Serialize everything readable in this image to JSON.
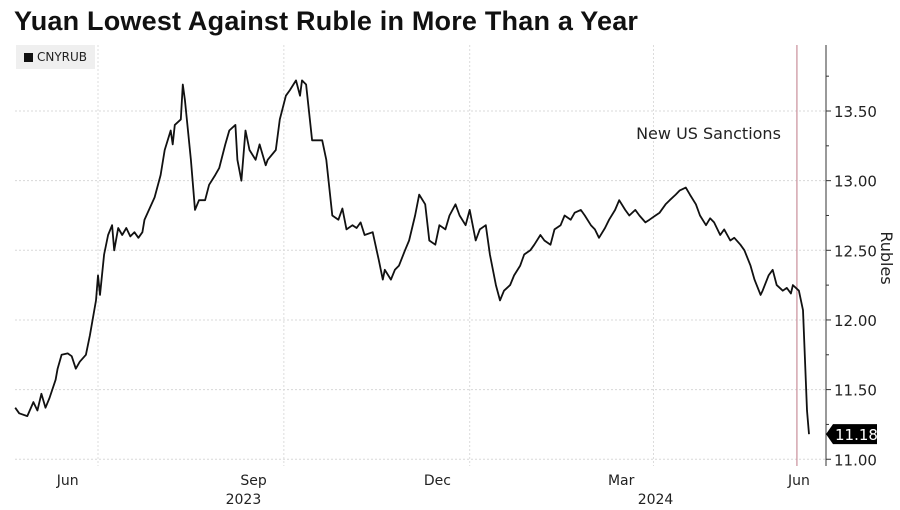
{
  "chart_data": {
    "type": "line",
    "title": "Yuan Lowest Against Ruble in More Than a Year",
    "ylabel": "Rubles",
    "xlabel": "",
    "x_unit": "days since 2023-07-01",
    "ylim": [
      11.0,
      13.9
    ],
    "xlim": [
      -41,
      366
    ],
    "grid": true,
    "legend": {
      "position": "top-left",
      "entries": [
        "CNYRUB"
      ]
    },
    "y_ticks": [
      "11.00",
      "11.50",
      "12.00",
      "12.50",
      "13.00",
      "13.50"
    ],
    "y_tick_values": [
      11.0,
      11.5,
      12.0,
      12.5,
      13.0,
      13.5
    ],
    "x_gridlines": [
      0,
      92,
      184,
      275
    ],
    "x_tick_labels": [
      {
        "label": "Jun",
        "day": -15
      },
      {
        "label": "Sep",
        "day": 77
      },
      {
        "label": "Dec",
        "day": 168
      },
      {
        "label": "Mar",
        "day": 259
      },
      {
        "label": "Jun",
        "day": 347
      }
    ],
    "year_labels": [
      {
        "label": "2023",
        "day": 72
      },
      {
        "label": "2024",
        "day": 276
      }
    ],
    "annotation": {
      "text": "New US Sanctions",
      "day": 346,
      "color": "#c98f9b"
    },
    "last_value": {
      "label": "11.18",
      "value": 11.18
    },
    "series": [
      {
        "name": "CNYRUB",
        "color": "#111111",
        "x": [
          -41,
          -39,
          -35,
          -32,
          -30,
          -28,
          -26,
          -24,
          -21,
          -20,
          -18,
          -15,
          -13,
          -11,
          -9,
          -6,
          -4,
          -1,
          0,
          1,
          3,
          5,
          7,
          8,
          10,
          12,
          14,
          16,
          18,
          20,
          22,
          23,
          28,
          31,
          33,
          36,
          37,
          38,
          41,
          42,
          43,
          46,
          48,
          50,
          53,
          55,
          58,
          60,
          63,
          65,
          68,
          69,
          71,
          73,
          75,
          78,
          80,
          83,
          84,
          88,
          90,
          93,
          95,
          98,
          100,
          101,
          103,
          106,
          109,
          111,
          113,
          116,
          119,
          121,
          123,
          126,
          128,
          130,
          132,
          136,
          139,
          141,
          142,
          145,
          147,
          149,
          152,
          154,
          157,
          159,
          162,
          164,
          167,
          169,
          172,
          174,
          177,
          179,
          182,
          184,
          187,
          189,
          192,
          194,
          197,
          199,
          201,
          204,
          206,
          209,
          211,
          214,
          216,
          219,
          221,
          224,
          226,
          229,
          231,
          234,
          236,
          239,
          241,
          244,
          246,
          248,
          251,
          253,
          256,
          258,
          261,
          263,
          266,
          268,
          271,
          273,
          276,
          278,
          281,
          283,
          286,
          288,
          291,
          293,
          296,
          298,
          301,
          303,
          305,
          308,
          310,
          313,
          315,
          318,
          320,
          323,
          325,
          328,
          329,
          332,
          334,
          336,
          339,
          341,
          343,
          344,
          347,
          349,
          350,
          351,
          352
        ],
        "values": [
          11.37,
          11.33,
          11.31,
          11.41,
          11.35,
          11.47,
          11.37,
          11.44,
          11.57,
          11.65,
          11.75,
          11.76,
          11.74,
          11.65,
          11.7,
          11.75,
          11.89,
          12.14,
          12.32,
          12.18,
          12.47,
          12.61,
          12.68,
          12.5,
          12.66,
          12.61,
          12.66,
          12.6,
          12.63,
          12.59,
          12.63,
          12.72,
          12.88,
          13.04,
          13.22,
          13.36,
          13.26,
          13.4,
          13.44,
          13.69,
          13.58,
          13.15,
          12.79,
          12.86,
          12.86,
          12.97,
          13.04,
          13.09,
          13.26,
          13.36,
          13.4,
          13.15,
          13.0,
          13.36,
          13.22,
          13.15,
          13.26,
          13.11,
          13.15,
          13.22,
          13.44,
          13.61,
          13.65,
          13.72,
          13.61,
          13.72,
          13.69,
          13.29,
          13.29,
          13.29,
          13.15,
          12.75,
          12.72,
          12.8,
          12.65,
          12.68,
          12.66,
          12.7,
          12.61,
          12.63,
          12.43,
          12.29,
          12.36,
          12.29,
          12.36,
          12.39,
          12.5,
          12.57,
          12.75,
          12.9,
          12.83,
          12.57,
          12.54,
          12.68,
          12.65,
          12.75,
          12.83,
          12.75,
          12.68,
          12.79,
          12.57,
          12.65,
          12.68,
          12.47,
          12.25,
          12.14,
          12.21,
          12.25,
          12.32,
          12.39,
          12.47,
          12.5,
          12.54,
          12.61,
          12.57,
          12.54,
          12.65,
          12.68,
          12.75,
          12.72,
          12.77,
          12.79,
          12.75,
          12.68,
          12.65,
          12.59,
          12.66,
          12.72,
          12.79,
          12.86,
          12.79,
          12.75,
          12.79,
          12.75,
          12.7,
          12.72,
          12.75,
          12.77,
          12.83,
          12.86,
          12.9,
          12.93,
          12.95,
          12.9,
          12.83,
          12.75,
          12.68,
          12.73,
          12.7,
          12.61,
          12.65,
          12.57,
          12.59,
          12.54,
          12.5,
          12.39,
          12.29,
          12.18,
          12.21,
          12.32,
          12.36,
          12.25,
          12.21,
          12.23,
          12.19,
          12.25,
          12.21,
          12.07,
          11.71,
          11.35,
          11.18
        ]
      }
    ]
  }
}
